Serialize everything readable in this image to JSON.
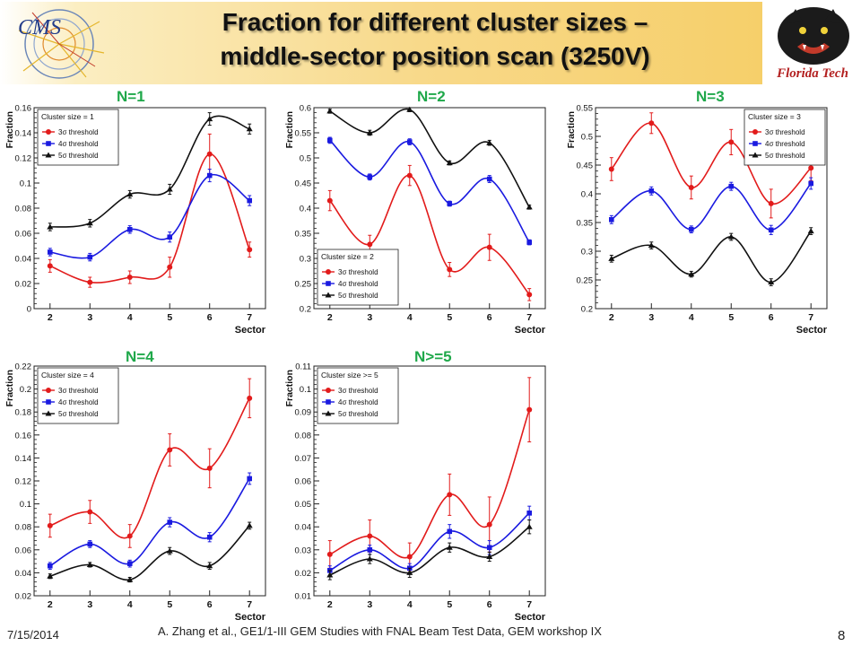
{
  "header": {
    "title_line1": "Fraction for different cluster sizes –",
    "title_line2": "middle-sector position scan (3250V)",
    "cms_logo_text": "CMS",
    "ft_logo_text": "Florida Tech"
  },
  "colors": {
    "red": "#e21b1b",
    "blue": "#1a1ae0",
    "black": "#111111",
    "panel_label": "#1fa84a"
  },
  "footer": {
    "date": "7/15/2014",
    "citation": "A. Zhang et al., GE1/1-III GEM Studies with FNAL Beam Test Data, GEM workshop IX",
    "page": "8"
  },
  "chart_data": [
    {
      "type": "line",
      "panel_label": "N=1",
      "legend_title": "Cluster size = 1",
      "xlabel": "Sector",
      "ylabel": "Fraction",
      "x": [
        2,
        3,
        4,
        5,
        6,
        7
      ],
      "xlim": [
        1.6,
        7.4
      ],
      "ylim": [
        0,
        0.16
      ],
      "yticks": [
        "0",
        "0.02",
        "0.04",
        "0.06",
        "0.08",
        "0.1",
        "0.12",
        "0.14",
        "0.16"
      ],
      "legend_position": "top-left",
      "series": [
        {
          "name": "3σ threshold",
          "color": "#e21b1b",
          "marker": "circle",
          "values": [
            0.034,
            0.021,
            0.025,
            0.033,
            0.123,
            0.047
          ],
          "errors": [
            0.005,
            0.004,
            0.005,
            0.008,
            0.016,
            0.006
          ]
        },
        {
          "name": "4σ threshold",
          "color": "#1a1ae0",
          "marker": "square",
          "values": [
            0.045,
            0.041,
            0.063,
            0.057,
            0.106,
            0.086
          ],
          "errors": [
            0.003,
            0.003,
            0.003,
            0.004,
            0.005,
            0.004
          ]
        },
        {
          "name": "5σ threshold",
          "color": "#111111",
          "marker": "triangle",
          "values": [
            0.065,
            0.068,
            0.091,
            0.095,
            0.151,
            0.143
          ],
          "errors": [
            0.003,
            0.003,
            0.003,
            0.004,
            0.005,
            0.004
          ]
        }
      ]
    },
    {
      "type": "line",
      "panel_label": "N=2",
      "legend_title": "Cluster size = 2",
      "xlabel": "Sector",
      "ylabel": "Fraction",
      "x": [
        2,
        3,
        4,
        5,
        6,
        7
      ],
      "xlim": [
        1.6,
        7.4
      ],
      "ylim": [
        0.2,
        0.6
      ],
      "yticks": [
        "0.2",
        "0.25",
        "0.3",
        "0.35",
        "0.4",
        "0.45",
        "0.5",
        "0.55",
        "0.6"
      ],
      "legend_position": "bottom-left",
      "series": [
        {
          "name": "3σ threshold",
          "color": "#e21b1b",
          "marker": "circle",
          "values": [
            0.415,
            0.328,
            0.465,
            0.278,
            0.322,
            0.228
          ],
          "errors": [
            0.02,
            0.018,
            0.02,
            0.014,
            0.026,
            0.012
          ]
        },
        {
          "name": "4σ threshold",
          "color": "#1a1ae0",
          "marker": "square",
          "values": [
            0.535,
            0.462,
            0.532,
            0.409,
            0.458,
            0.332
          ],
          "errors": [
            0.006,
            0.006,
            0.006,
            0.005,
            0.007,
            0.005
          ]
        },
        {
          "name": "5σ threshold",
          "color": "#111111",
          "marker": "triangle",
          "values": [
            0.593,
            0.55,
            0.596,
            0.49,
            0.53,
            0.402
          ],
          "errors": [
            0.004,
            0.005,
            0.004,
            0.004,
            0.005,
            0.004
          ]
        }
      ]
    },
    {
      "type": "line",
      "panel_label": "N=3",
      "legend_title": "Cluster size = 3",
      "xlabel": "Sector",
      "ylabel": "Fraction",
      "x": [
        2,
        3,
        4,
        5,
        6,
        7
      ],
      "xlim": [
        1.6,
        7.4
      ],
      "ylim": [
        0.2,
        0.55
      ],
      "yticks": [
        "0.2",
        "0.25",
        "0.3",
        "0.35",
        "0.4",
        "0.45",
        "0.5",
        "0.55"
      ],
      "legend_position": "top-right",
      "series": [
        {
          "name": "3σ threshold",
          "color": "#e21b1b",
          "marker": "circle",
          "values": [
            0.443,
            0.523,
            0.411,
            0.49,
            0.383,
            0.445
          ],
          "errors": [
            0.02,
            0.018,
            0.02,
            0.022,
            0.025,
            0.022
          ]
        },
        {
          "name": "4σ threshold",
          "color": "#1a1ae0",
          "marker": "square",
          "values": [
            0.355,
            0.405,
            0.338,
            0.413,
            0.337,
            0.418
          ],
          "errors": [
            0.007,
            0.007,
            0.006,
            0.007,
            0.008,
            0.01
          ]
        },
        {
          "name": "5σ threshold",
          "color": "#111111",
          "marker": "triangle",
          "values": [
            0.287,
            0.31,
            0.26,
            0.325,
            0.246,
            0.335
          ],
          "errors": [
            0.006,
            0.006,
            0.005,
            0.006,
            0.006,
            0.006
          ]
        }
      ]
    },
    {
      "type": "line",
      "panel_label": "N=4",
      "legend_title": "Cluster size = 4",
      "xlabel": "Sector",
      "ylabel": "Fraction",
      "x": [
        2,
        3,
        4,
        5,
        6,
        7
      ],
      "xlim": [
        1.6,
        7.4
      ],
      "ylim": [
        0.02,
        0.22
      ],
      "yticks": [
        "0.02",
        "0.04",
        "0.06",
        "0.08",
        "0.1",
        "0.12",
        "0.14",
        "0.16",
        "0.18",
        "0.2",
        "0.22"
      ],
      "legend_position": "top-left",
      "series": [
        {
          "name": "3σ threshold",
          "color": "#e21b1b",
          "marker": "circle",
          "values": [
            0.081,
            0.093,
            0.072,
            0.147,
            0.131,
            0.192
          ],
          "errors": [
            0.01,
            0.01,
            0.01,
            0.014,
            0.017,
            0.017
          ]
        },
        {
          "name": "4σ threshold",
          "color": "#1a1ae0",
          "marker": "square",
          "values": [
            0.046,
            0.065,
            0.048,
            0.084,
            0.071,
            0.122
          ],
          "errors": [
            0.003,
            0.003,
            0.003,
            0.004,
            0.004,
            0.005
          ]
        },
        {
          "name": "5σ threshold",
          "color": "#111111",
          "marker": "triangle",
          "values": [
            0.037,
            0.047,
            0.034,
            0.059,
            0.046,
            0.081
          ],
          "errors": [
            0.002,
            0.002,
            0.002,
            0.003,
            0.003,
            0.003
          ]
        }
      ]
    },
    {
      "type": "line",
      "panel_label": "N>=5",
      "legend_title": "Cluster size >= 5",
      "xlabel": "Sector",
      "ylabel": "Fraction",
      "x": [
        2,
        3,
        4,
        5,
        6,
        7
      ],
      "xlim": [
        1.6,
        7.4
      ],
      "ylim": [
        0.01,
        0.11
      ],
      "yticks": [
        "0.01",
        "0.02",
        "0.03",
        "0.04",
        "0.05",
        "0.06",
        "0.07",
        "0.08",
        "0.09",
        "0.1",
        "0.11"
      ],
      "legend_position": "top-left",
      "series": [
        {
          "name": "3σ threshold",
          "color": "#e21b1b",
          "marker": "circle",
          "values": [
            0.028,
            0.036,
            0.027,
            0.054,
            0.041,
            0.091
          ],
          "errors": [
            0.006,
            0.007,
            0.006,
            0.009,
            0.012,
            0.014
          ]
        },
        {
          "name": "4σ threshold",
          "color": "#1a1ae0",
          "marker": "square",
          "values": [
            0.021,
            0.03,
            0.022,
            0.038,
            0.031,
            0.046
          ],
          "errors": [
            0.002,
            0.002,
            0.002,
            0.003,
            0.003,
            0.003
          ]
        },
        {
          "name": "5σ threshold",
          "color": "#111111",
          "marker": "triangle",
          "values": [
            0.019,
            0.026,
            0.02,
            0.031,
            0.027,
            0.04
          ],
          "errors": [
            0.002,
            0.002,
            0.002,
            0.002,
            0.002,
            0.003
          ]
        }
      ]
    }
  ]
}
